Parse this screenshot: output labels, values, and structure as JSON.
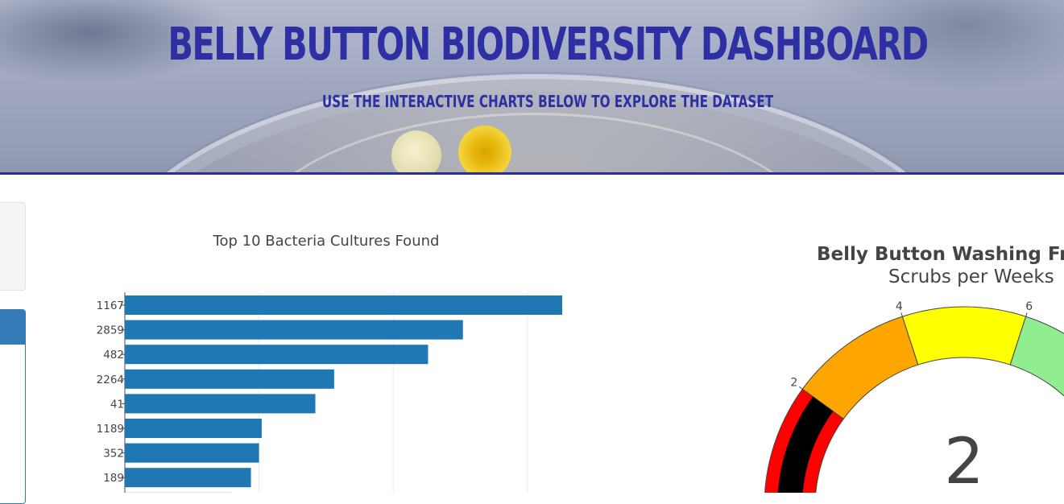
{
  "header": {
    "title": "Belly Button Biodiversity Dashboard",
    "subtitle": "Use the interactive charts below to explore the dataset"
  },
  "colors": {
    "header_text": "#2e2fa3",
    "panel_primary": "#337ab7",
    "bar_color": "#1f77b4"
  },
  "bar_chart": {
    "title": "Top 10 Bacteria Cultures Found"
  },
  "gauge_chart": {
    "title": "Belly Button Washing Frequ",
    "subtitle": "Scrubs per Weeks",
    "value_label": "2"
  },
  "chart_data": [
    {
      "type": "bar",
      "orientation": "horizontal",
      "title": "Top 10 Bacteria Cultures Found",
      "categories": [
        "1167",
        "2859",
        "482",
        "2264",
        "41",
        "1189",
        "352",
        "189"
      ],
      "values": [
        163,
        126,
        113,
        78,
        71,
        51,
        50,
        47
      ],
      "xlim": [
        0,
        175
      ],
      "grid": true,
      "color": "#1f77b4"
    },
    {
      "type": "gauge",
      "title": "Belly Button Washing Frequ",
      "subtitle": "Scrubs per Weeks",
      "value": 2,
      "range": [
        0,
        10
      ],
      "tick_labels": [
        "2",
        "4",
        "6"
      ],
      "bands": [
        {
          "from": 0,
          "to": 2,
          "color": "red"
        },
        {
          "from": 2,
          "to": 4,
          "color": "orange"
        },
        {
          "from": 4,
          "to": 6,
          "color": "yellow"
        },
        {
          "from": 6,
          "to": 8,
          "color": "lightgreen"
        }
      ],
      "bar_color": "black"
    }
  ]
}
